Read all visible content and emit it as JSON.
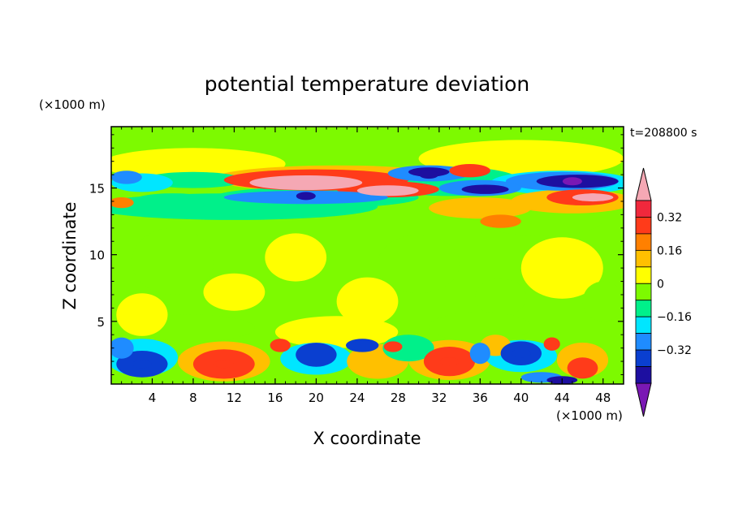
{
  "chart_data": {
    "type": "heatmap",
    "title": "potential temperature deviation",
    "time_label": "t=208800 s",
    "xlabel": "X coordinate",
    "ylabel": "Z coordinate",
    "x_unit": "(×1000 m)",
    "y_unit": "(×1000 m)",
    "xlim": [
      0,
      50
    ],
    "ylim": [
      0.3,
      19.6
    ],
    "x_ticks": [
      "4",
      "8",
      "12",
      "16",
      "20",
      "24",
      "28",
      "32",
      "36",
      "40",
      "44",
      "48"
    ],
    "y_ticks": [
      "5",
      "10",
      "15"
    ],
    "colorbar": {
      "levels": [
        -0.48,
        -0.4,
        -0.32,
        -0.24,
        -0.16,
        -0.08,
        0,
        0.08,
        0.16,
        0.24,
        0.32,
        0.4,
        0.48
      ],
      "labels": [
        "0.32",
        "0.16",
        "0",
        "−0.16",
        "−0.32"
      ],
      "colors": [
        "#7a18b4",
        "#1d0fa0",
        "#0a3fd0",
        "#1f8cff",
        "#00e6ff",
        "#00f08a",
        "#7dfa00",
        "#ffff00",
        "#ffc000",
        "#ff8000",
        "#ff3b1a",
        "#f0283c",
        "#f5a8b4"
      ]
    },
    "features": [
      {
        "x": 18,
        "z": 15.5,
        "value": 0.5
      },
      {
        "x": 27,
        "z": 14.8,
        "value": 0.5
      },
      {
        "x": 19,
        "z": 14.4,
        "value": -0.4
      },
      {
        "x": 31,
        "z": 16.0,
        "value": -0.4
      },
      {
        "x": 36,
        "z": 14.9,
        "value": -0.4
      },
      {
        "x": 45,
        "z": 15.5,
        "value": -0.5
      },
      {
        "x": 47,
        "z": 14.3,
        "value": 0.45
      },
      {
        "x": 3,
        "z": 1.8,
        "value": -0.35
      },
      {
        "x": 11,
        "z": 1.8,
        "value": 0.3
      },
      {
        "x": 33,
        "z": 2.0,
        "value": 0.3
      },
      {
        "x": 40,
        "z": 2.6,
        "value": -0.35
      }
    ]
  }
}
